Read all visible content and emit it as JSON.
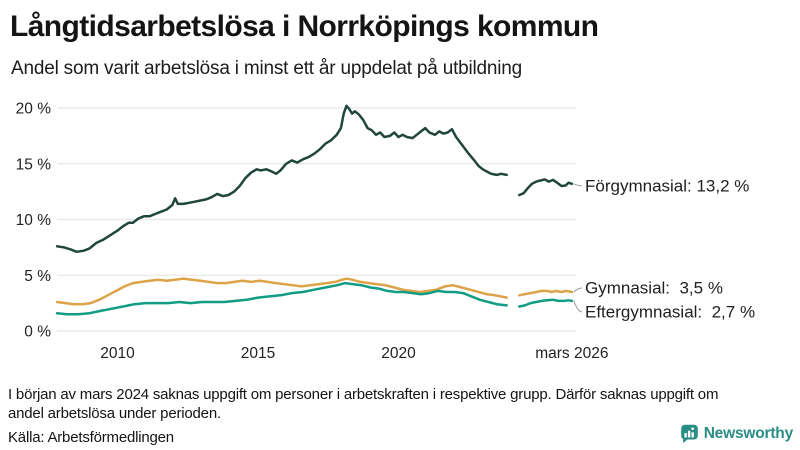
{
  "chart_data": {
    "type": "line",
    "title": "Långtidsarbetslösa i Norrköpings kommun",
    "subtitle": "Andel som varit arbetslösa i minst ett år uppdelat på utbildning",
    "xlabel": "",
    "ylabel": "",
    "xlim": [
      2007.83,
      2026.17
    ],
    "ylim": [
      0,
      21
    ],
    "grid": "horizontal",
    "legend_position": "right-end-labels",
    "gap": {
      "from": 2023.85,
      "to": 2024.3
    },
    "x_ticks": [
      {
        "label": "2010",
        "year": 2010
      },
      {
        "label": "2015",
        "year": 2015
      },
      {
        "label": "2020",
        "year": 2020
      },
      {
        "label": "mars 2026",
        "year": 2026.17
      }
    ],
    "y_ticks": [
      {
        "label": "0 %",
        "value": 0
      },
      {
        "label": "5 %",
        "value": 5
      },
      {
        "label": "10 %",
        "value": 10
      },
      {
        "label": "15 %",
        "value": 15
      },
      {
        "label": "20 %",
        "value": 20
      }
    ],
    "series": [
      {
        "name": "Förgymnasial",
        "end_label": "Förgymnasial: 13,2 %",
        "end_value": 13.2,
        "color": "#20463d",
        "segments": [
          [
            [
              2007.85,
              7.6
            ],
            [
              2008.1,
              7.5
            ],
            [
              2008.35,
              7.3
            ],
            [
              2008.55,
              7.1
            ],
            [
              2008.8,
              7.2
            ],
            [
              2009.0,
              7.4
            ],
            [
              2009.25,
              7.9
            ],
            [
              2009.5,
              8.2
            ],
            [
              2009.75,
              8.6
            ],
            [
              2010.0,
              9.0
            ],
            [
              2010.2,
              9.4
            ],
            [
              2010.4,
              9.7
            ],
            [
              2010.55,
              9.7
            ],
            [
              2010.75,
              10.1
            ],
            [
              2010.95,
              10.3
            ],
            [
              2011.15,
              10.3
            ],
            [
              2011.35,
              10.5
            ],
            [
              2011.55,
              10.7
            ],
            [
              2011.75,
              10.9
            ],
            [
              2011.95,
              11.3
            ],
            [
              2012.05,
              11.9
            ],
            [
              2012.15,
              11.4
            ],
            [
              2012.35,
              11.4
            ],
            [
              2012.55,
              11.5
            ],
            [
              2012.75,
              11.6
            ],
            [
              2012.95,
              11.7
            ],
            [
              2013.15,
              11.8
            ],
            [
              2013.35,
              12.0
            ],
            [
              2013.55,
              12.3
            ],
            [
              2013.75,
              12.1
            ],
            [
              2013.95,
              12.2
            ],
            [
              2014.15,
              12.5
            ],
            [
              2014.35,
              13.0
            ],
            [
              2014.55,
              13.7
            ],
            [
              2014.75,
              14.2
            ],
            [
              2014.95,
              14.5
            ],
            [
              2015.1,
              14.4
            ],
            [
              2015.3,
              14.5
            ],
            [
              2015.5,
              14.3
            ],
            [
              2015.65,
              14.1
            ],
            [
              2015.8,
              14.4
            ],
            [
              2016.0,
              15.0
            ],
            [
              2016.2,
              15.3
            ],
            [
              2016.4,
              15.1
            ],
            [
              2016.6,
              15.4
            ],
            [
              2016.8,
              15.6
            ],
            [
              2017.0,
              15.9
            ],
            [
              2017.2,
              16.3
            ],
            [
              2017.4,
              16.8
            ],
            [
              2017.6,
              17.1
            ],
            [
              2017.8,
              17.6
            ],
            [
              2017.95,
              18.2
            ],
            [
              2018.05,
              19.5
            ],
            [
              2018.15,
              20.2
            ],
            [
              2018.25,
              19.9
            ],
            [
              2018.35,
              19.5
            ],
            [
              2018.45,
              19.7
            ],
            [
              2018.6,
              19.4
            ],
            [
              2018.75,
              18.9
            ],
            [
              2018.9,
              18.2
            ],
            [
              2019.05,
              18.0
            ],
            [
              2019.2,
              17.6
            ],
            [
              2019.35,
              17.8
            ],
            [
              2019.5,
              17.4
            ],
            [
              2019.7,
              17.5
            ],
            [
              2019.85,
              17.8
            ],
            [
              2020.0,
              17.4
            ],
            [
              2020.15,
              17.6
            ],
            [
              2020.3,
              17.4
            ],
            [
              2020.5,
              17.3
            ],
            [
              2020.65,
              17.6
            ],
            [
              2020.8,
              17.9
            ],
            [
              2020.95,
              18.2
            ],
            [
              2021.1,
              17.8
            ],
            [
              2021.3,
              17.6
            ],
            [
              2021.45,
              17.9
            ],
            [
              2021.6,
              17.7
            ],
            [
              2021.75,
              17.8
            ],
            [
              2021.9,
              18.1
            ],
            [
              2022.05,
              17.4
            ],
            [
              2022.2,
              16.9
            ],
            [
              2022.35,
              16.4
            ],
            [
              2022.5,
              15.9
            ],
            [
              2022.7,
              15.3
            ],
            [
              2022.85,
              14.8
            ],
            [
              2023.0,
              14.5
            ],
            [
              2023.15,
              14.3
            ],
            [
              2023.3,
              14.1
            ],
            [
              2023.5,
              14.0
            ],
            [
              2023.65,
              14.1
            ],
            [
              2023.85,
              14.0
            ]
          ],
          [
            [
              2024.3,
              12.2
            ],
            [
              2024.45,
              12.35
            ],
            [
              2024.6,
              12.8
            ],
            [
              2024.75,
              13.2
            ],
            [
              2024.9,
              13.4
            ],
            [
              2025.05,
              13.5
            ],
            [
              2025.2,
              13.6
            ],
            [
              2025.35,
              13.4
            ],
            [
              2025.5,
              13.55
            ],
            [
              2025.65,
              13.3
            ],
            [
              2025.8,
              13.0
            ],
            [
              2025.95,
              13.05
            ],
            [
              2026.05,
              13.3
            ],
            [
              2026.17,
              13.2
            ]
          ]
        ]
      },
      {
        "name": "Gymnasial",
        "end_label": "Gymnasial:  3,5 %",
        "end_value": 3.5,
        "color": "#dda348",
        "segments": [
          [
            [
              2007.85,
              2.6
            ],
            [
              2008.15,
              2.5
            ],
            [
              2008.45,
              2.4
            ],
            [
              2008.75,
              2.4
            ],
            [
              2009.05,
              2.5
            ],
            [
              2009.35,
              2.8
            ],
            [
              2009.65,
              3.2
            ],
            [
              2009.95,
              3.6
            ],
            [
              2010.25,
              4.0
            ],
            [
              2010.55,
              4.3
            ],
            [
              2010.85,
              4.4
            ],
            [
              2011.15,
              4.5
            ],
            [
              2011.45,
              4.6
            ],
            [
              2011.75,
              4.5
            ],
            [
              2012.05,
              4.6
            ],
            [
              2012.35,
              4.7
            ],
            [
              2012.65,
              4.6
            ],
            [
              2012.95,
              4.5
            ],
            [
              2013.25,
              4.4
            ],
            [
              2013.55,
              4.3
            ],
            [
              2013.85,
              4.3
            ],
            [
              2014.15,
              4.4
            ],
            [
              2014.45,
              4.5
            ],
            [
              2014.75,
              4.4
            ],
            [
              2015.05,
              4.5
            ],
            [
              2015.35,
              4.4
            ],
            [
              2015.65,
              4.3
            ],
            [
              2015.95,
              4.2
            ],
            [
              2016.25,
              4.1
            ],
            [
              2016.55,
              4.0
            ],
            [
              2016.85,
              4.1
            ],
            [
              2017.15,
              4.2
            ],
            [
              2017.45,
              4.3
            ],
            [
              2017.75,
              4.4
            ],
            [
              2018.0,
              4.6
            ],
            [
              2018.15,
              4.7
            ],
            [
              2018.35,
              4.6
            ],
            [
              2018.65,
              4.4
            ],
            [
              2018.95,
              4.3
            ],
            [
              2019.25,
              4.2
            ],
            [
              2019.55,
              4.1
            ],
            [
              2019.85,
              3.9
            ],
            [
              2020.15,
              3.7
            ],
            [
              2020.45,
              3.6
            ],
            [
              2020.75,
              3.5
            ],
            [
              2021.05,
              3.6
            ],
            [
              2021.35,
              3.7
            ],
            [
              2021.65,
              4.0
            ],
            [
              2021.95,
              4.1
            ],
            [
              2022.25,
              3.9
            ],
            [
              2022.55,
              3.7
            ],
            [
              2022.85,
              3.5
            ],
            [
              2023.15,
              3.3
            ],
            [
              2023.45,
              3.2
            ],
            [
              2023.85,
              3.0
            ]
          ],
          [
            [
              2024.3,
              3.2
            ],
            [
              2024.5,
              3.3
            ],
            [
              2024.7,
              3.4
            ],
            [
              2024.9,
              3.5
            ],
            [
              2025.1,
              3.6
            ],
            [
              2025.3,
              3.6
            ],
            [
              2025.45,
              3.5
            ],
            [
              2025.6,
              3.6
            ],
            [
              2025.8,
              3.5
            ],
            [
              2025.95,
              3.6
            ],
            [
              2026.17,
              3.5
            ]
          ]
        ]
      },
      {
        "name": "Eftergymnasial",
        "end_label": "Eftergymnasial:  2,7 %",
        "end_value": 2.7,
        "color": "#119c83",
        "segments": [
          [
            [
              2007.85,
              1.6
            ],
            [
              2008.2,
              1.5
            ],
            [
              2008.6,
              1.5
            ],
            [
              2009.0,
              1.6
            ],
            [
              2009.4,
              1.8
            ],
            [
              2009.8,
              2.0
            ],
            [
              2010.2,
              2.2
            ],
            [
              2010.6,
              2.4
            ],
            [
              2011.0,
              2.5
            ],
            [
              2011.4,
              2.5
            ],
            [
              2011.8,
              2.5
            ],
            [
              2012.2,
              2.6
            ],
            [
              2012.6,
              2.5
            ],
            [
              2013.0,
              2.6
            ],
            [
              2013.4,
              2.6
            ],
            [
              2013.8,
              2.6
            ],
            [
              2014.2,
              2.7
            ],
            [
              2014.6,
              2.8
            ],
            [
              2015.0,
              3.0
            ],
            [
              2015.4,
              3.1
            ],
            [
              2015.8,
              3.2
            ],
            [
              2016.2,
              3.4
            ],
            [
              2016.6,
              3.5
            ],
            [
              2017.0,
              3.7
            ],
            [
              2017.4,
              3.9
            ],
            [
              2017.8,
              4.1
            ],
            [
              2018.1,
              4.3
            ],
            [
              2018.4,
              4.2
            ],
            [
              2018.7,
              4.1
            ],
            [
              2019.0,
              3.9
            ],
            [
              2019.3,
              3.8
            ],
            [
              2019.6,
              3.6
            ],
            [
              2019.9,
              3.5
            ],
            [
              2020.2,
              3.5
            ],
            [
              2020.5,
              3.4
            ],
            [
              2020.8,
              3.3
            ],
            [
              2021.1,
              3.4
            ],
            [
              2021.4,
              3.6
            ],
            [
              2021.7,
              3.5
            ],
            [
              2022.0,
              3.5
            ],
            [
              2022.3,
              3.4
            ],
            [
              2022.6,
              3.1
            ],
            [
              2022.9,
              2.8
            ],
            [
              2023.2,
              2.6
            ],
            [
              2023.5,
              2.4
            ],
            [
              2023.85,
              2.3
            ]
          ],
          [
            [
              2024.3,
              2.2
            ],
            [
              2024.5,
              2.3
            ],
            [
              2024.7,
              2.5
            ],
            [
              2024.9,
              2.6
            ],
            [
              2025.1,
              2.7
            ],
            [
              2025.3,
              2.75
            ],
            [
              2025.5,
              2.8
            ],
            [
              2025.7,
              2.7
            ],
            [
              2025.9,
              2.7
            ],
            [
              2026.05,
              2.75
            ],
            [
              2026.17,
              2.7
            ]
          ]
        ]
      }
    ]
  },
  "footer": {
    "note_lines": [
      "I början av mars 2024 saknas uppgift om personer i arbetskraften i respektive grupp. Därför saknas uppgift om",
      "andel arbetslösa under perioden."
    ],
    "source": "Källa: Arbetsförmedlingen",
    "brand": "Newsworthy"
  },
  "colors": {
    "grid": "#e8e8ea",
    "axis_text": "#222222",
    "label_text": "#1f1f1f",
    "connector": "#999999",
    "brand": "#2a8d86",
    "background": "#ffffff"
  }
}
